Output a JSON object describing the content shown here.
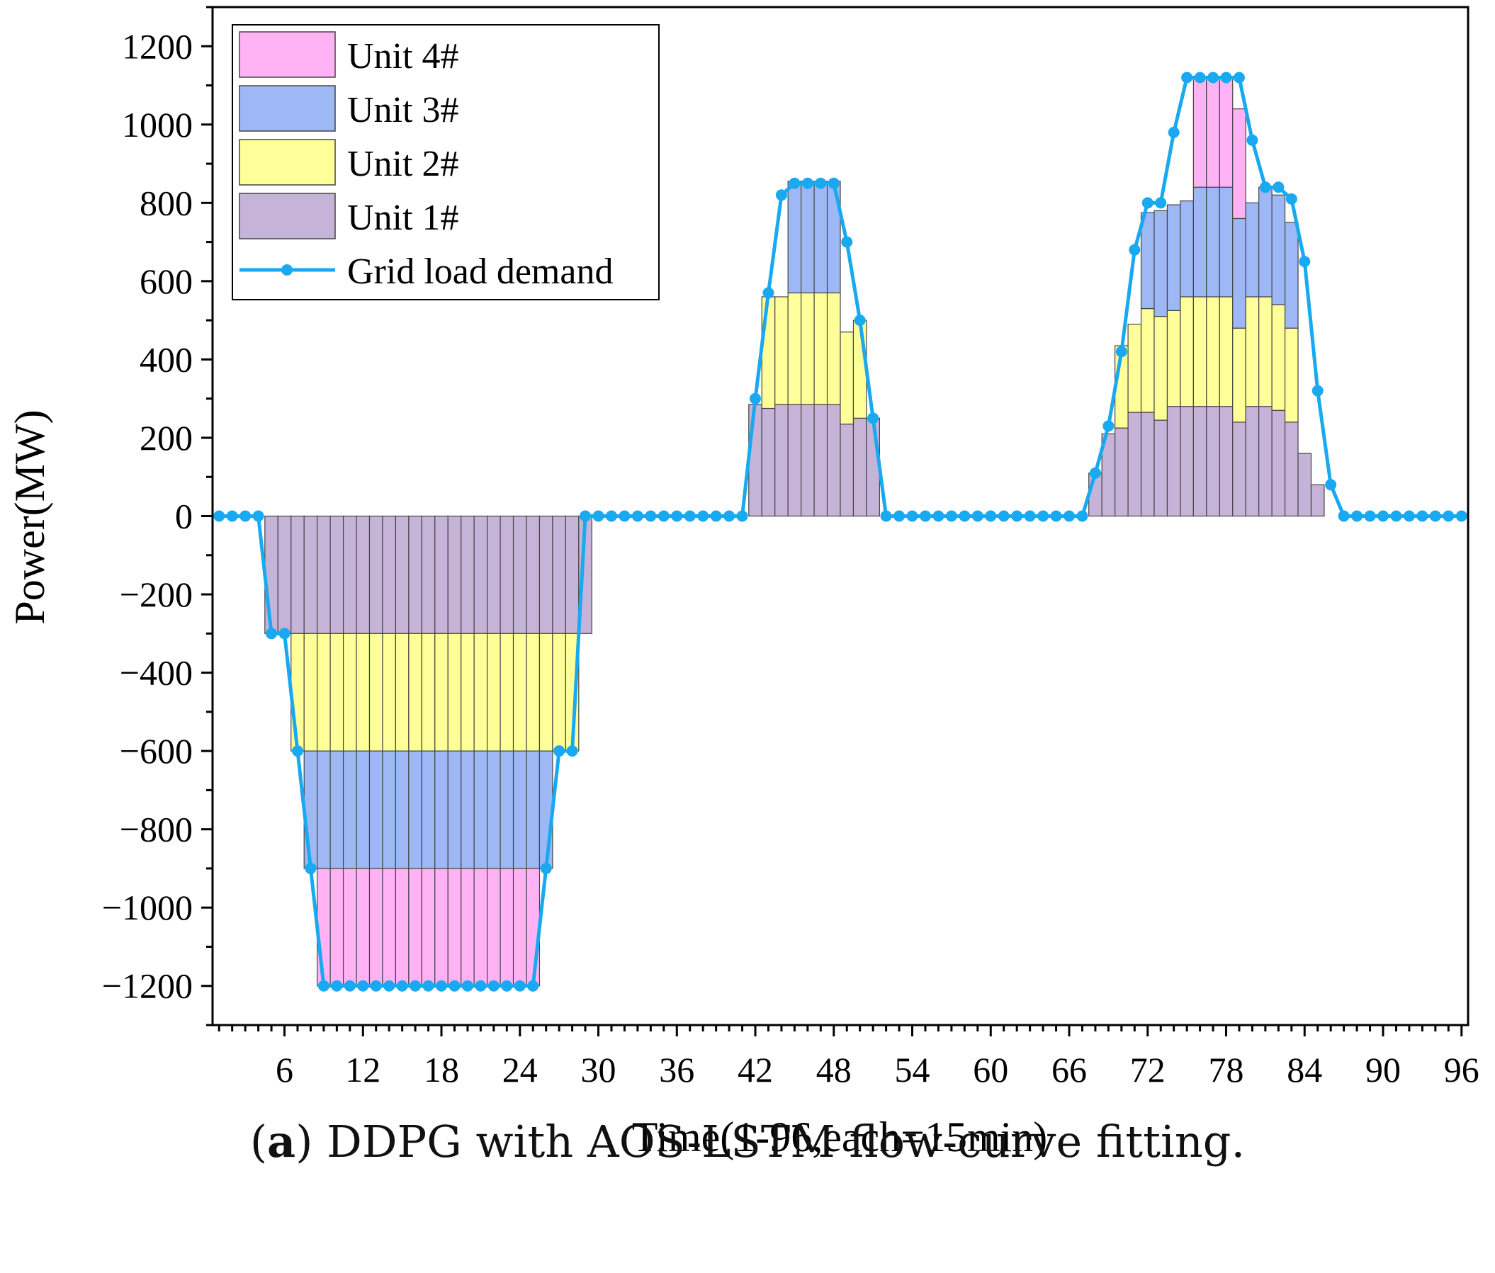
{
  "chart_data": {
    "type": "bar",
    "stacked": true,
    "xlabel": "Time(1-96,each=15min)",
    "ylabel": "Power(MW)",
    "xlim": [
      0.5,
      96.5
    ],
    "ylim": [
      -1300,
      1300
    ],
    "yticks": [
      -1200,
      -1000,
      -800,
      -600,
      -400,
      -200,
      0,
      200,
      400,
      600,
      800,
      1000,
      1200
    ],
    "xticks": [
      6,
      12,
      18,
      24,
      30,
      36,
      42,
      48,
      54,
      60,
      66,
      72,
      78,
      84,
      90,
      96
    ],
    "x": [
      1,
      2,
      3,
      4,
      5,
      6,
      7,
      8,
      9,
      10,
      11,
      12,
      13,
      14,
      15,
      16,
      17,
      18,
      19,
      20,
      21,
      22,
      23,
      24,
      25,
      26,
      27,
      28,
      29,
      30,
      31,
      32,
      33,
      34,
      35,
      36,
      37,
      38,
      39,
      40,
      41,
      42,
      43,
      44,
      45,
      46,
      47,
      48,
      49,
      50,
      51,
      52,
      53,
      54,
      55,
      56,
      57,
      58,
      59,
      60,
      61,
      62,
      63,
      64,
      65,
      66,
      67,
      68,
      69,
      70,
      71,
      72,
      73,
      74,
      75,
      76,
      77,
      78,
      79,
      80,
      81,
      82,
      83,
      84,
      85,
      86,
      87,
      88,
      89,
      90,
      91,
      92,
      93,
      94,
      95,
      96
    ],
    "series": [
      {
        "name": "Unit 1#",
        "color": "#c6b4d8",
        "values": [
          0,
          0,
          0,
          0,
          -300,
          -300,
          -300,
          -300,
          -300,
          -300,
          -300,
          -300,
          -300,
          -300,
          -300,
          -300,
          -300,
          -300,
          -300,
          -300,
          -300,
          -300,
          -300,
          -300,
          -300,
          -300,
          -300,
          -300,
          -300,
          0,
          0,
          0,
          0,
          0,
          0,
          0,
          0,
          0,
          0,
          0,
          0,
          285,
          275,
          285,
          285,
          285,
          285,
          285,
          235,
          250,
          250,
          0,
          0,
          0,
          0,
          0,
          0,
          0,
          0,
          0,
          0,
          0,
          0,
          0,
          0,
          0,
          0,
          110,
          210,
          225,
          265,
          265,
          245,
          280,
          280,
          280,
          280,
          280,
          240,
          280,
          280,
          270,
          240,
          160,
          80,
          0,
          0,
          0,
          0,
          0,
          0,
          0,
          0,
          0,
          0,
          0
        ]
      },
      {
        "name": "Unit 2#",
        "color": "#ffff99",
        "values": [
          0,
          0,
          0,
          0,
          0,
          0,
          -300,
          -300,
          -300,
          -300,
          -300,
          -300,
          -300,
          -300,
          -300,
          -300,
          -300,
          -300,
          -300,
          -300,
          -300,
          -300,
          -300,
          -300,
          -300,
          -300,
          -300,
          -300,
          0,
          0,
          0,
          0,
          0,
          0,
          0,
          0,
          0,
          0,
          0,
          0,
          0,
          0,
          285,
          275,
          285,
          285,
          285,
          285,
          235,
          250,
          0,
          0,
          0,
          0,
          0,
          0,
          0,
          0,
          0,
          0,
          0,
          0,
          0,
          0,
          0,
          0,
          0,
          0,
          0,
          210,
          225,
          265,
          265,
          245,
          280,
          280,
          280,
          280,
          240,
          280,
          280,
          270,
          240,
          0,
          0,
          0,
          0,
          0,
          0,
          0,
          0,
          0,
          0,
          0,
          0,
          0
        ]
      },
      {
        "name": "Unit 3#",
        "color": "#9db8f5",
        "values": [
          0,
          0,
          0,
          0,
          0,
          0,
          0,
          -300,
          -300,
          -300,
          -300,
          -300,
          -300,
          -300,
          -300,
          -300,
          -300,
          -300,
          -300,
          -300,
          -300,
          -300,
          -300,
          -300,
          -300,
          -300,
          0,
          0,
          0,
          0,
          0,
          0,
          0,
          0,
          0,
          0,
          0,
          0,
          0,
          0,
          0,
          0,
          0,
          0,
          285,
          285,
          285,
          285,
          0,
          0,
          0,
          0,
          0,
          0,
          0,
          0,
          0,
          0,
          0,
          0,
          0,
          0,
          0,
          0,
          0,
          0,
          0,
          0,
          0,
          0,
          0,
          245,
          270,
          270,
          245,
          280,
          280,
          280,
          280,
          240,
          280,
          280,
          270,
          0,
          0,
          0,
          0,
          0,
          0,
          0,
          0,
          0,
          0,
          0,
          0,
          0
        ]
      },
      {
        "name": "Unit 4#",
        "color": "#ffb3f5",
        "values": [
          0,
          0,
          0,
          0,
          0,
          0,
          0,
          0,
          -300,
          -300,
          -300,
          -300,
          -300,
          -300,
          -300,
          -300,
          -300,
          -300,
          -300,
          -300,
          -300,
          -300,
          -300,
          -300,
          -300,
          0,
          0,
          0,
          0,
          0,
          0,
          0,
          0,
          0,
          0,
          0,
          0,
          0,
          0,
          0,
          0,
          0,
          0,
          0,
          0,
          0,
          0,
          0,
          0,
          0,
          0,
          0,
          0,
          0,
          0,
          0,
          0,
          0,
          0,
          0,
          0,
          0,
          0,
          0,
          0,
          0,
          0,
          0,
          0,
          0,
          0,
          0,
          0,
          0,
          0,
          280,
          280,
          280,
          280,
          0,
          0,
          0,
          0,
          0,
          0,
          0,
          0,
          0,
          0,
          0,
          0,
          0,
          0,
          0,
          0,
          0
        ]
      }
    ],
    "line": {
      "name": "Grid load demand",
      "color": "#19a9f0",
      "values": [
        0,
        0,
        0,
        0,
        -300,
        -300,
        -600,
        -900,
        -1200,
        -1200,
        -1200,
        -1200,
        -1200,
        -1200,
        -1200,
        -1200,
        -1200,
        -1200,
        -1200,
        -1200,
        -1200,
        -1200,
        -1200,
        -1200,
        -1200,
        -900,
        -600,
        -600,
        0,
        0,
        0,
        0,
        0,
        0,
        0,
        0,
        0,
        0,
        0,
        0,
        0,
        300,
        570,
        820,
        850,
        850,
        850,
        850,
        700,
        500,
        250,
        0,
        0,
        0,
        0,
        0,
        0,
        0,
        0,
        0,
        0,
        0,
        0,
        0,
        0,
        0,
        0,
        110,
        230,
        420,
        680,
        800,
        800,
        980,
        1120,
        1120,
        1120,
        1120,
        1120,
        960,
        840,
        840,
        810,
        650,
        320,
        80,
        0,
        0,
        0,
        0,
        0,
        0,
        0,
        0,
        0,
        0
      ]
    },
    "legend": [
      "Unit 4#",
      "Unit 3#",
      "Unit 2#",
      "Unit 1#",
      "Grid load demand"
    ],
    "legend_position": "top-left"
  },
  "caption": {
    "label": "(a)",
    "label_letter": "a",
    "text": " DDPG with AOS-LSTM flow-curve fitting."
  }
}
